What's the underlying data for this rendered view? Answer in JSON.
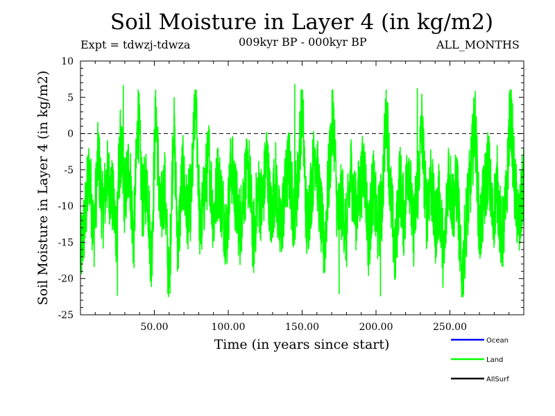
{
  "title": "Soil Moisture in Layer 4 (in kg/m2)",
  "expt_label": "Expt = tdwzj-tdwza",
  "period_label": "009kyr BP - 000kyr BP",
  "months_label": "ALL_MONTHS",
  "chart_data": {
    "type": "line",
    "xlabel": "Time (in years since start)",
    "ylabel": "Soil Moisture in Layer 4 (in kg/m2)",
    "xlim": [
      0,
      300
    ],
    "ylim": [
      -25,
      10
    ],
    "x_ticks": [
      50,
      100,
      150,
      200,
      250
    ],
    "x_tick_labels": [
      "50.00",
      "100.00",
      "150.00",
      "200.00",
      "250.00"
    ],
    "y_ticks": [
      10,
      5,
      0,
      -5,
      -10,
      -15,
      -20,
      -25
    ],
    "y_tick_labels": [
      "10",
      "5",
      "0",
      "-5",
      "-10",
      "-15",
      "-20",
      "-25"
    ],
    "reference_line": {
      "y": 0,
      "style": "dashed"
    },
    "legend": [
      {
        "name": "Ocean",
        "color": "#0000ff"
      },
      {
        "name": "Land",
        "color": "#00ff00"
      },
      {
        "name": "AllSurf",
        "color": "#000000"
      }
    ],
    "series": [
      {
        "name": "Land",
        "color": "#00ff00",
        "x": [
          0,
          3,
          6,
          9,
          12,
          15,
          18,
          21,
          24,
          27,
          30,
          33,
          36,
          39,
          42,
          45,
          48,
          51,
          54,
          57,
          60,
          63,
          66,
          69,
          72,
          75,
          78,
          81,
          84,
          87,
          90,
          93,
          96,
          99,
          102,
          105,
          108,
          111,
          114,
          117,
          120,
          123,
          126,
          129,
          132,
          135,
          138,
          141,
          144,
          147,
          150,
          153,
          156,
          159,
          162,
          165,
          168,
          171,
          174,
          177,
          180,
          183,
          186,
          189,
          192,
          195,
          198,
          201,
          204,
          207,
          210,
          213,
          216,
          219,
          222,
          225,
          228,
          231,
          234,
          237,
          240,
          243,
          246,
          249,
          252,
          255,
          258,
          261,
          264,
          267,
          270,
          273,
          276,
          279,
          282,
          285,
          288,
          291,
          294,
          297,
          300
        ],
        "values": [
          -17,
          -12,
          -5,
          -14,
          -3,
          -11,
          -6,
          -8,
          -13,
          -2,
          -9,
          -4,
          -15,
          3,
          -10,
          -6,
          -18,
          4,
          -12,
          -7,
          -22,
          2,
          -16,
          -5,
          -11,
          -9,
          6,
          -14,
          -8,
          -3,
          -12,
          -6,
          -10,
          -14,
          -4,
          -9,
          -13,
          -7,
          -5,
          -15,
          -8,
          -10,
          -3,
          -12,
          -6,
          -14,
          -9,
          -4,
          -11,
          -7,
          5,
          -13,
          -8,
          -2,
          -10,
          -16,
          -6,
          3,
          -12,
          -9,
          -14,
          -5,
          -11,
          -8,
          -4,
          -15,
          -7,
          -13,
          -10,
          4,
          -9,
          -17,
          -6,
          -12,
          -3,
          -14,
          -8,
          1,
          -11,
          -6,
          -13,
          -9,
          -18,
          -5,
          -10,
          -7,
          -21,
          -12,
          -6,
          2,
          -14,
          -9,
          -4,
          -12,
          -7,
          -15,
          -10,
          4,
          -8,
          -13,
          -6
        ],
        "extremes": [
          {
            "x": 25,
            "y": -22.3
          },
          {
            "x": 29,
            "y": 6.6
          },
          {
            "x": 145,
            "y": 6.8
          },
          {
            "x": 175,
            "y": -22.1
          },
          {
            "x": 203,
            "y": -22.4
          },
          {
            "x": 228,
            "y": 6.2
          }
        ]
      }
    ]
  }
}
